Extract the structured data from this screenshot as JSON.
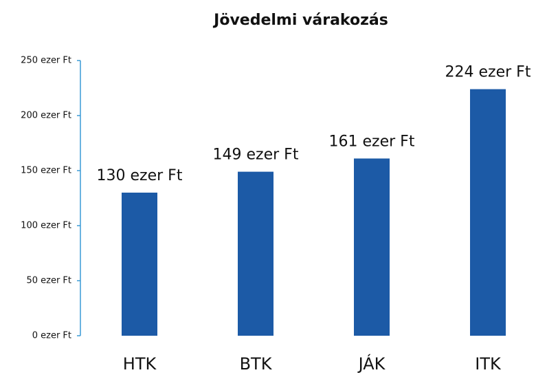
{
  "chart_data": {
    "type": "bar",
    "title": "Jövedelmi várakozás",
    "categories": [
      "HTK",
      "BTK",
      "JÁK",
      "ITK"
    ],
    "values": [
      130,
      149,
      161,
      224
    ],
    "value_labels": [
      "130 ezer Ft",
      "149 ezer Ft",
      "161 ezer Ft",
      "224 ezer Ft"
    ],
    "color": "#1c5aa6",
    "ylim": [
      0,
      250
    ],
    "yticks": [
      {
        "value": 0,
        "label": "0 ezer Ft"
      },
      {
        "value": 50,
        "label": "50 ezer Ft"
      },
      {
        "value": 100,
        "label": "100 ezer Ft"
      },
      {
        "value": 150,
        "label": "150 ezer Ft"
      },
      {
        "value": 200,
        "label": "200 ezer Ft"
      },
      {
        "value": 250,
        "label": "250 ezer Ft"
      }
    ],
    "grid": false
  }
}
